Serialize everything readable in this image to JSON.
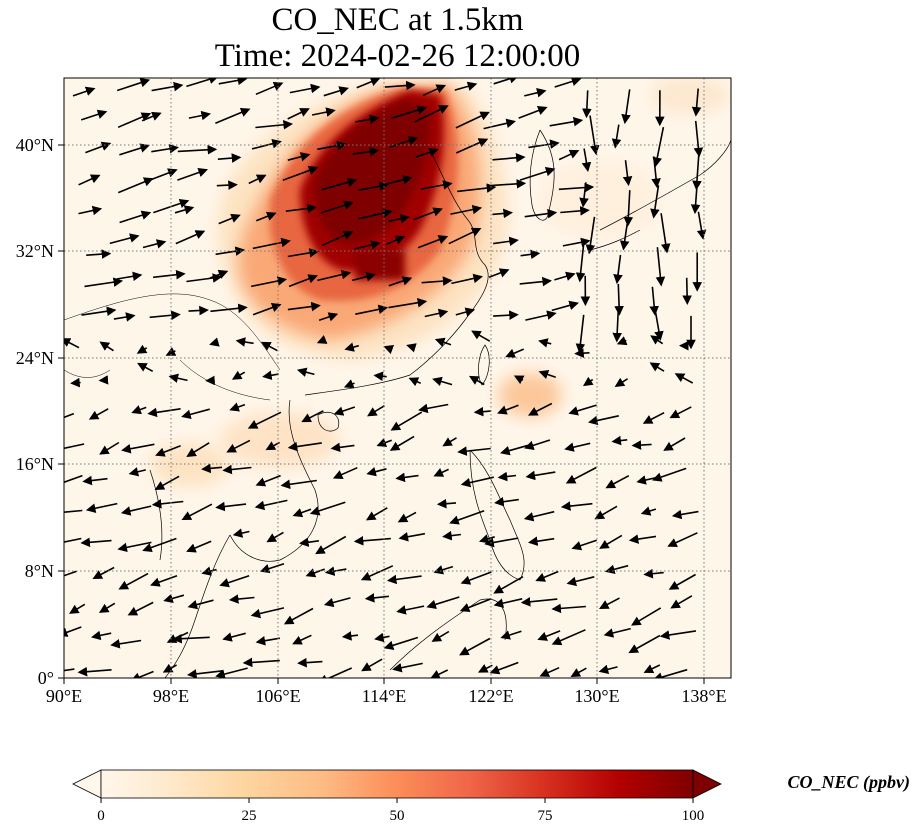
{
  "title": {
    "line1": "CO_NEC at 1.5km",
    "line2": "Time: 2024-02-26 12:00:00"
  },
  "map": {
    "variable": "CO_NEC",
    "level": "1.5km",
    "lon_range": [
      90,
      140
    ],
    "lat_range": [
      0,
      44
    ],
    "lon_ticks": [
      "90°E",
      "98°E",
      "106°E",
      "114°E",
      "122°E",
      "130°E",
      "138°E"
    ],
    "lat_ticks": [
      "0°",
      "8°N",
      "16°N",
      "24°N",
      "32°N",
      "40°N"
    ],
    "gridlines": true,
    "colormap": "OrRd"
  },
  "colorbar": {
    "label": "CO_NEC (ppbv)",
    "ticks": [
      "0",
      "25",
      "50",
      "75",
      "100"
    ],
    "range": [
      0,
      100
    ],
    "colors": [
      "#fff7ec",
      "#fee8c8",
      "#fdd49e",
      "#fdbb84",
      "#fc8d59",
      "#ef6548",
      "#d7301f",
      "#b30000",
      "#7f0000"
    ]
  }
}
